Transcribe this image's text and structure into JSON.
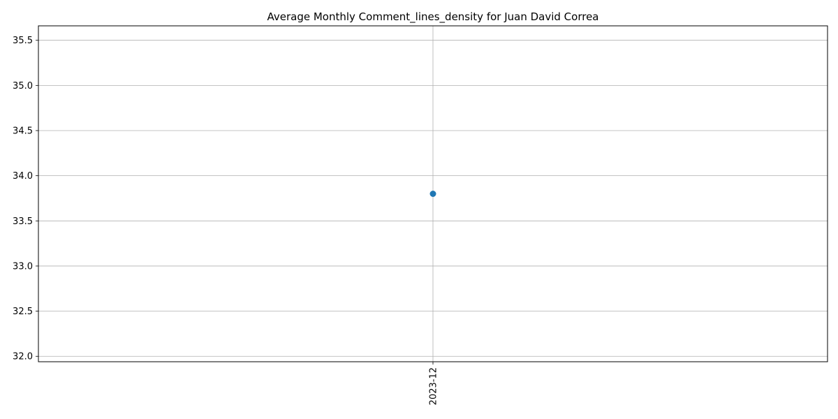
{
  "chart_data": {
    "type": "line",
    "title": "Average Monthly Comment_lines_density for Juan David Correa",
    "xlabel": "",
    "ylabel": "",
    "categories": [
      "2023-12"
    ],
    "series": [
      {
        "values": [
          33.8
        ],
        "color": "#1f77b4",
        "marker": "circle"
      }
    ],
    "ylim": [
      31.94,
      35.66
    ],
    "yticks": [
      32.0,
      32.5,
      33.0,
      33.5,
      34.0,
      34.5,
      35.0,
      35.5
    ],
    "ytick_labels": [
      "32.0",
      "32.5",
      "33.0",
      "33.5",
      "34.0",
      "34.5",
      "35.0",
      "35.5"
    ],
    "grid": true,
    "legend": "none",
    "x_tick_rotation": "vertical"
  }
}
